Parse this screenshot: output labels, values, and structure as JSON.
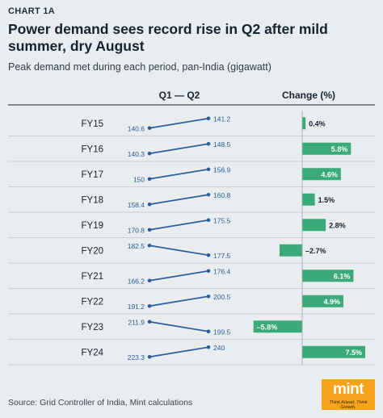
{
  "kicker": "CHART 1A",
  "title": "Power demand sees record rise in Q2 after mild summer, dry August",
  "subtitle": "Peak demand met during each period, pan-India (gigawatt)",
  "source": "Source: Grid Controller of India, Mint calculations",
  "logo": {
    "word": "mint",
    "tagline": "Think Ahead. Think Growth."
  },
  "colors": {
    "line": "#2a5d9c",
    "bar": "#3aaa78",
    "text": "#15222f",
    "divider": "#c9cfd4"
  },
  "chart_data": {
    "type": "slope",
    "column_headers": {
      "slope": "Q1 — Q2",
      "change": "Change (%)"
    },
    "categories": [
      "FY15",
      "FY16",
      "FY17",
      "FY18",
      "FY19",
      "FY20",
      "FY21",
      "FY22",
      "FY23",
      "FY24"
    ],
    "series": [
      {
        "name": "Q1",
        "values": [
          140.6,
          140.3,
          150,
          158.4,
          170.8,
          182.5,
          166.2,
          191.2,
          211.9,
          223.3
        ]
      },
      {
        "name": "Q2",
        "values": [
          141.2,
          148.5,
          156.9,
          160.8,
          175.5,
          177.5,
          176.4,
          200.5,
          199.5,
          240
        ]
      }
    ],
    "change_labels": [
      "0.4%",
      "5.8%",
      "4.6%",
      "1.5%",
      "2.8%",
      "–2.7%",
      "6.1%",
      "4.9%",
      "–5.8%",
      "7.5%"
    ],
    "change_values": [
      0.4,
      5.8,
      4.6,
      1.5,
      2.8,
      -2.7,
      6.1,
      4.9,
      -5.8,
      7.5
    ]
  }
}
